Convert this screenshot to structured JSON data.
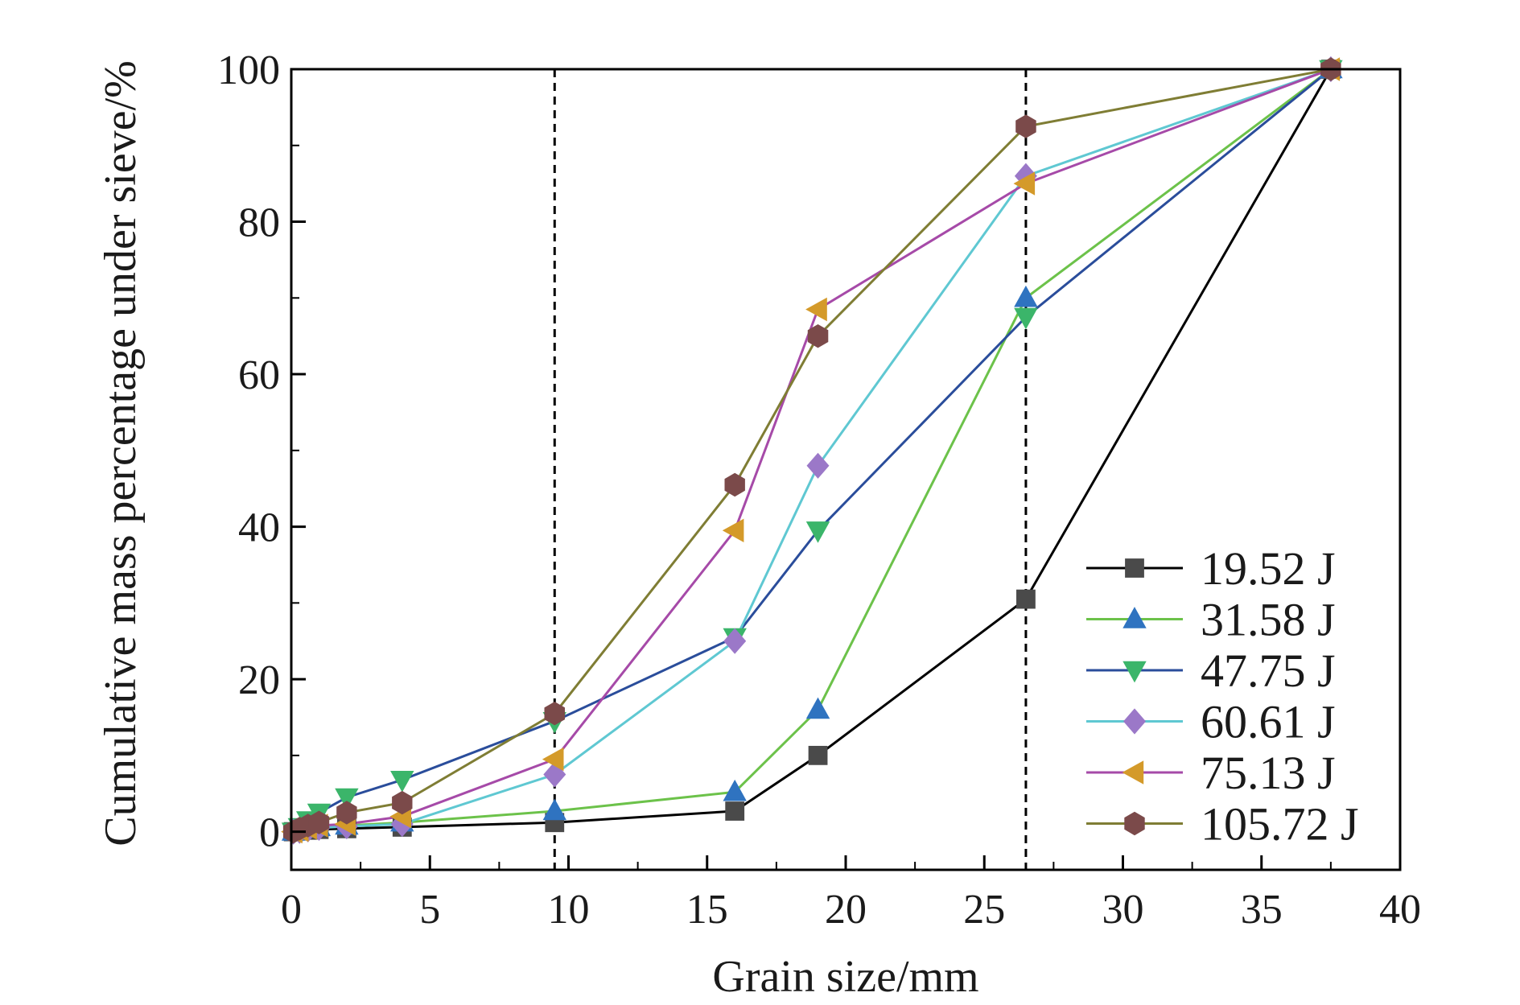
{
  "chart_data": {
    "type": "line",
    "xlabel": "Grain size/mm",
    "ylabel": "Cumulative mass percentage under sieve/%",
    "xlim": [
      0,
      40
    ],
    "ylim": [
      -5,
      100
    ],
    "x_ticks": [
      0,
      5,
      10,
      15,
      20,
      25,
      30,
      35,
      40
    ],
    "y_ticks": [
      0,
      20,
      40,
      60,
      80,
      100
    ],
    "x_tick_labels": [
      "0",
      "5",
      "10",
      "15",
      "20",
      "25",
      "30",
      "35",
      "40"
    ],
    "y_tick_labels": [
      "0",
      "20",
      "40",
      "60",
      "80",
      "100"
    ],
    "grid": false,
    "legend_position": "bottom-right",
    "reference_lines_x": [
      9.5,
      26.5
    ],
    "series": [
      {
        "name": "19.52 J",
        "marker": "square",
        "line_color": "#000000",
        "marker_color": "#4a4a4a",
        "x": [
          0.075,
          0.3,
          0.6,
          1.0,
          2.0,
          4.0,
          9.5,
          16.0,
          19.0,
          26.5,
          37.5
        ],
        "y": [
          0.0,
          0.1,
          0.2,
          0.3,
          0.4,
          0.6,
          1.2,
          2.7,
          10.0,
          30.5,
          100
        ]
      },
      {
        "name": "31.58 J",
        "marker": "triangle-up",
        "line_color": "#6cc24a",
        "marker_color": "#2f73c0",
        "x": [
          0.075,
          0.3,
          0.6,
          1.0,
          2.0,
          4.0,
          9.5,
          16.0,
          19.0,
          26.5,
          37.5
        ],
        "y": [
          0.0,
          0.2,
          0.4,
          0.6,
          0.8,
          1.2,
          2.7,
          5.2,
          16.0,
          70.0,
          100
        ]
      },
      {
        "name": "47.75 J",
        "marker": "triangle-down",
        "line_color": "#2a4d9b",
        "marker_color": "#3bb56a",
        "x": [
          0.075,
          0.3,
          0.6,
          1.0,
          2.0,
          4.0,
          9.5,
          16.0,
          19.0,
          26.5,
          37.5
        ],
        "y": [
          0.0,
          0.6,
          1.5,
          2.5,
          4.5,
          6.8,
          14.5,
          25.5,
          39.5,
          67.5,
          100
        ]
      },
      {
        "name": "60.61 J",
        "marker": "diamond",
        "line_color": "#5fc8d2",
        "marker_color": "#9b78c8",
        "x": [
          0.075,
          0.3,
          0.6,
          1.0,
          2.0,
          4.0,
          9.5,
          16.0,
          19.0,
          26.5,
          37.5
        ],
        "y": [
          0.0,
          0.1,
          0.3,
          0.5,
          0.7,
          1.0,
          7.5,
          25.0,
          48.0,
          86.0,
          100
        ]
      },
      {
        "name": "75.13 J",
        "marker": "triangle-left",
        "line_color": "#a64aa8",
        "marker_color": "#d49a2a",
        "x": [
          0.075,
          0.3,
          0.6,
          1.0,
          2.0,
          4.0,
          9.5,
          16.0,
          19.0,
          26.5,
          37.5
        ],
        "y": [
          0.0,
          0.2,
          0.5,
          0.8,
          1.0,
          2.0,
          9.5,
          39.5,
          68.5,
          85.0,
          100
        ]
      },
      {
        "name": "105.72 J",
        "marker": "hexagon",
        "line_color": "#7f7d34",
        "marker_color": "#7b4a4a",
        "x": [
          0.075,
          0.3,
          0.6,
          1.0,
          2.0,
          4.0,
          9.5,
          16.0,
          19.0,
          26.5,
          37.5
        ],
        "y": [
          0.0,
          0.4,
          0.8,
          1.2,
          2.5,
          3.8,
          15.5,
          45.5,
          65.0,
          92.5,
          100
        ]
      }
    ]
  }
}
